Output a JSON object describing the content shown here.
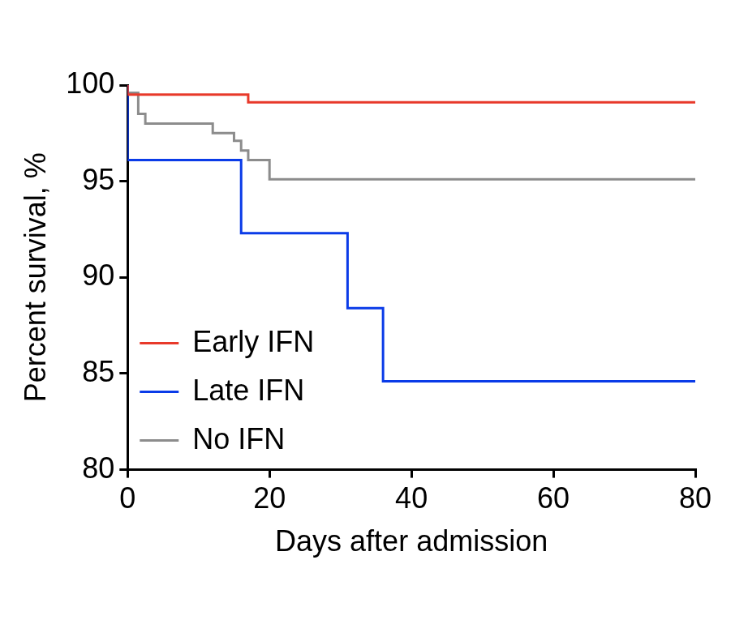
{
  "chart_data": {
    "type": "line",
    "line_style": "step",
    "x_label": "Days after admission",
    "y_label": "Percent survival, %",
    "series": [
      {
        "name": "Early IFN",
        "color": "#e8392a",
        "x": [
          0,
          17,
          27,
          80
        ],
        "values": [
          100,
          99.5,
          99.1,
          99.1
        ]
      },
      {
        "name": "Late IFN",
        "color": "#0a3be8",
        "x": [
          0,
          16,
          31,
          36,
          63,
          80
        ],
        "values": [
          100,
          96.1,
          92.3,
          88.4,
          84.6,
          84.6
        ]
      },
      {
        "name": "No IFN",
        "color": "#8c8c8c",
        "x": [
          0,
          1.5,
          2.5,
          12,
          15,
          16,
          17,
          20,
          30,
          80
        ],
        "values": [
          100,
          99.6,
          98.5,
          98.0,
          97.5,
          97.1,
          96.6,
          96.1,
          95.1,
          95.1
        ]
      }
    ],
    "xlim": [
      0,
      80
    ],
    "xticks": [
      0,
      20,
      40,
      60,
      80
    ],
    "ylim": [
      80,
      100
    ],
    "yticks": [
      80,
      85,
      90,
      95,
      100
    ],
    "grid": false,
    "legend": "bottom-left"
  }
}
